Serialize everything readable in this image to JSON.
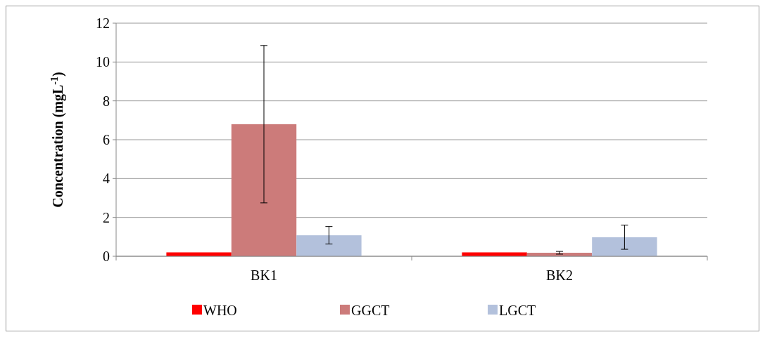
{
  "chart_data": {
    "type": "bar",
    "ylabel": "Concentration (mgL$^{-1}$)",
    "categories": [
      "BK1",
      "BK2"
    ],
    "series": [
      {
        "name": "WHO",
        "color": "#ff0000",
        "values": [
          0.2,
          0.2
        ]
      },
      {
        "name": "GGCT",
        "color": "#cc7b7a",
        "values": [
          6.8,
          0.18
        ],
        "errors": [
          4.05,
          0.07
        ]
      },
      {
        "name": "LGCT",
        "color": "#b3c1dc",
        "values": [
          1.08,
          0.98
        ],
        "errors": [
          0.45,
          0.62
        ]
      }
    ],
    "ylim": [
      0,
      12
    ],
    "yticks": [
      0,
      2,
      4,
      6,
      8,
      10,
      12
    ],
    "grid": "y",
    "legend": "bottom"
  }
}
